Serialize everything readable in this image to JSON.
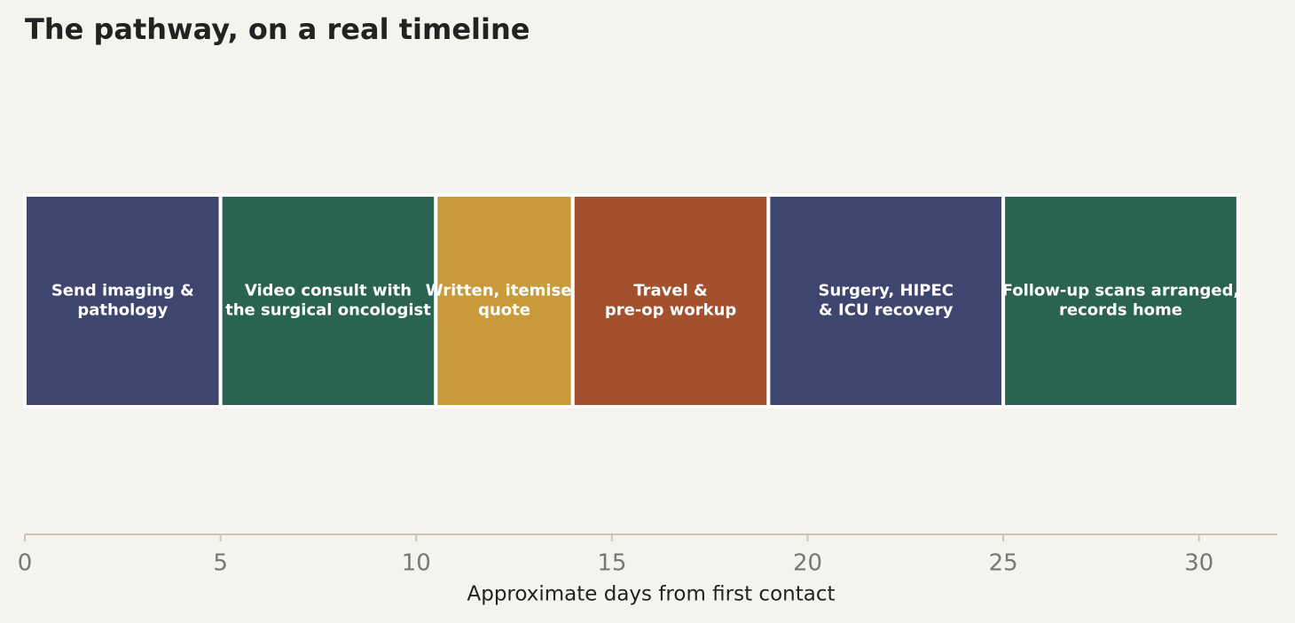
{
  "chart_data": {
    "type": "timeline",
    "title": "The pathway, on a real timeline",
    "xlabel": "Approximate days from first contact",
    "xlim": [
      0,
      32
    ],
    "xticks": [
      0,
      5,
      10,
      15,
      20,
      25,
      30
    ],
    "tasks": [
      {
        "label": [
          "Send imaging &",
          "pathology"
        ],
        "start": 0,
        "end": 5,
        "color": "#3e4670"
      },
      {
        "label": [
          "Video consult with",
          "the surgical oncologist"
        ],
        "start": 5,
        "end": 10.5,
        "color": "#2a6352"
      },
      {
        "label": [
          "Written, itemised",
          "quote"
        ],
        "start": 10.5,
        "end": 14,
        "color": "#c99a3a"
      },
      {
        "label": [
          "Travel &",
          "pre-op workup"
        ],
        "start": 14,
        "end": 19,
        "color": "#a2502e"
      },
      {
        "label": [
          "Surgery, HIPEC",
          "& ICU recovery"
        ],
        "start": 19,
        "end": 25,
        "color": "#3e4670"
      },
      {
        "label": [
          "Follow-up scans arranged,",
          "records home"
        ],
        "start": 25,
        "end": 31,
        "color": "#2a6352"
      }
    ]
  }
}
